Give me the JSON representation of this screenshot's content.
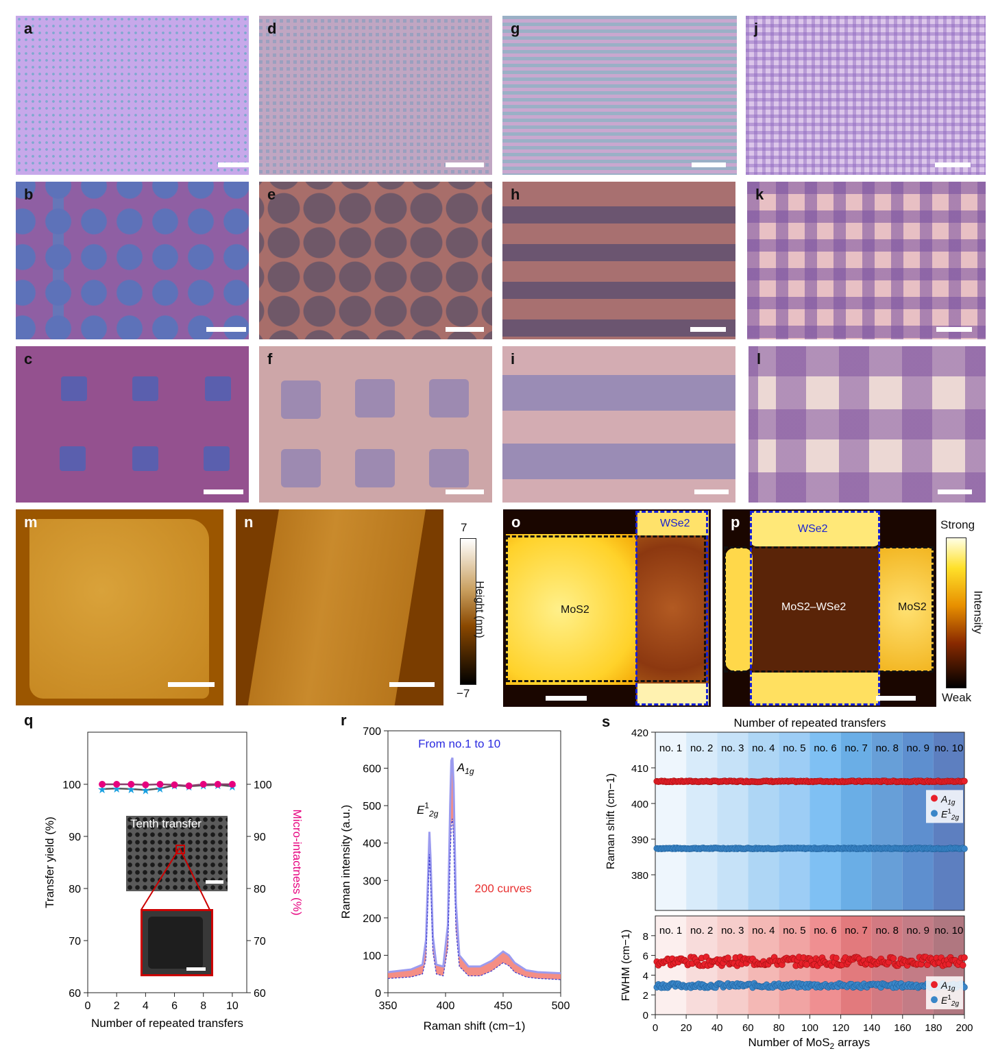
{
  "panels": {
    "a": "a",
    "b": "b",
    "c": "c",
    "d": "d",
    "e": "e",
    "f": "f",
    "g": "g",
    "h": "h",
    "i": "i",
    "j": "j",
    "k": "k",
    "l": "l",
    "m": "m",
    "n": "n",
    "o": "o",
    "p": "p",
    "q": "q",
    "r": "r",
    "s": "s"
  },
  "colors": {
    "pink_series": "#e6007e",
    "blue_series": "#1aa0e0",
    "a1g": "#e8202a",
    "e2g": "#3a86c8",
    "raman_purple": "#9b9bef",
    "raman_red": "#f27a70"
  },
  "afm_scale": {
    "max": "7",
    "min": "−7",
    "label": "Height (nm)"
  },
  "map_o": {
    "mos2": "MoS2",
    "wse2": "WSe2"
  },
  "map_p": {
    "wse2": "WSe2",
    "hetero": "MoS2–WSe2",
    "mos2": "MoS2"
  },
  "intensity_scale": {
    "strong": "Strong",
    "weak": "Weak",
    "label": "Intensity"
  },
  "chart_data": [
    {
      "panel": "q",
      "type": "line",
      "xlabel": "Number of repeated transfers",
      "ylabel": "Transfer yield (%)",
      "y2label": "Micro-intactness (%)",
      "xlim": [
        0,
        11
      ],
      "ylim": [
        60,
        110
      ],
      "y2lim": [
        60,
        110
      ],
      "xticks": [
        0,
        2,
        4,
        6,
        8,
        10
      ],
      "yticks": [
        60,
        70,
        80,
        90,
        100
      ],
      "x": [
        1,
        2,
        3,
        4,
        5,
        6,
        7,
        8,
        9,
        10
      ],
      "series": [
        {
          "axis": "y2",
          "marker": "circle",
          "values": [
            100,
            100,
            100,
            99.9,
            100,
            99.9,
            99.7,
            100,
            100,
            100
          ]
        },
        {
          "axis": "y",
          "marker": "star",
          "values": [
            99.1,
            99.2,
            99.1,
            98.9,
            99.2,
            99.8,
            99.6,
            99.8,
            99.9,
            99.6
          ]
        }
      ],
      "inset": {
        "label": "Tenth transfer"
      }
    },
    {
      "panel": "r",
      "type": "line",
      "xlabel": "Raman shift (cm−1)",
      "ylabel": "Raman intensity (a.u.)",
      "xlim": [
        350,
        500
      ],
      "ylim": [
        0,
        700
      ],
      "xticks": [
        350,
        400,
        450,
        500
      ],
      "yticks": [
        0,
        100,
        200,
        300,
        400,
        500,
        600,
        700
      ],
      "annotations": {
        "top": "From no.1 to 10",
        "curves": "200 curves",
        "a1g": "A1g",
        "e2g": "E12g"
      },
      "upper_envelope": {
        "x": [
          350,
          370,
          380,
          383,
          385,
          386,
          387,
          389,
          392,
          398,
          402,
          404,
          405,
          406,
          407,
          409,
          412,
          420,
          430,
          440,
          450,
          455,
          460,
          470,
          480,
          500
        ],
        "values": [
          55,
          62,
          75,
          140,
          330,
          430,
          360,
          150,
          75,
          70,
          180,
          500,
          620,
          628,
          560,
          240,
          100,
          70,
          70,
          85,
          110,
          100,
          80,
          60,
          55,
          52
        ]
      },
      "lower_envelope": {
        "x": [
          350,
          370,
          380,
          383,
          385,
          386,
          387,
          389,
          392,
          398,
          402,
          404,
          405,
          406,
          407,
          409,
          412,
          420,
          430,
          440,
          450,
          455,
          460,
          470,
          480,
          500
        ],
        "values": [
          38,
          42,
          50,
          90,
          270,
          370,
          300,
          110,
          50,
          45,
          120,
          360,
          450,
          465,
          410,
          170,
          70,
          45,
          45,
          58,
          80,
          72,
          55,
          42,
          38,
          35
        ]
      }
    },
    {
      "panel": "s-top",
      "type": "scatter",
      "title": "Number of repeated transfers",
      "ylabel": "Raman shift (cm−1)",
      "xlim": [
        0,
        200
      ],
      "ylim": [
        370,
        420
      ],
      "yticks": [
        380,
        390,
        400,
        410,
        420
      ],
      "bands": [
        "no. 1",
        "no. 2",
        "no. 3",
        "no. 4",
        "no. 5",
        "no. 6",
        "no. 7",
        "no. 8",
        "no. 9",
        "no. 10"
      ],
      "series": [
        {
          "name": "A1g",
          "constant": 406.2,
          "count": 200
        },
        {
          "name": "E12g",
          "constant": 387.4,
          "count": 200
        }
      ]
    },
    {
      "panel": "s-bottom",
      "type": "scatter",
      "xlabel": "Number of MoS2 arrays",
      "ylabel": "FWHM (cm−1)",
      "xlim": [
        0,
        200
      ],
      "ylim": [
        0,
        10
      ],
      "xticks": [
        0,
        20,
        40,
        60,
        80,
        100,
        120,
        140,
        160,
        180,
        200
      ],
      "yticks": [
        0,
        2,
        4,
        6,
        8
      ],
      "bands": [
        "no. 1",
        "no. 2",
        "no. 3",
        "no. 4",
        "no. 5",
        "no. 6",
        "no. 7",
        "no. 8",
        "no. 9",
        "no. 10"
      ],
      "series": [
        {
          "name": "A1g",
          "mean": 5.4,
          "spread": 0.45,
          "count": 200
        },
        {
          "name": "E12g",
          "mean": 2.95,
          "spread": 0.22,
          "count": 200
        }
      ]
    }
  ]
}
